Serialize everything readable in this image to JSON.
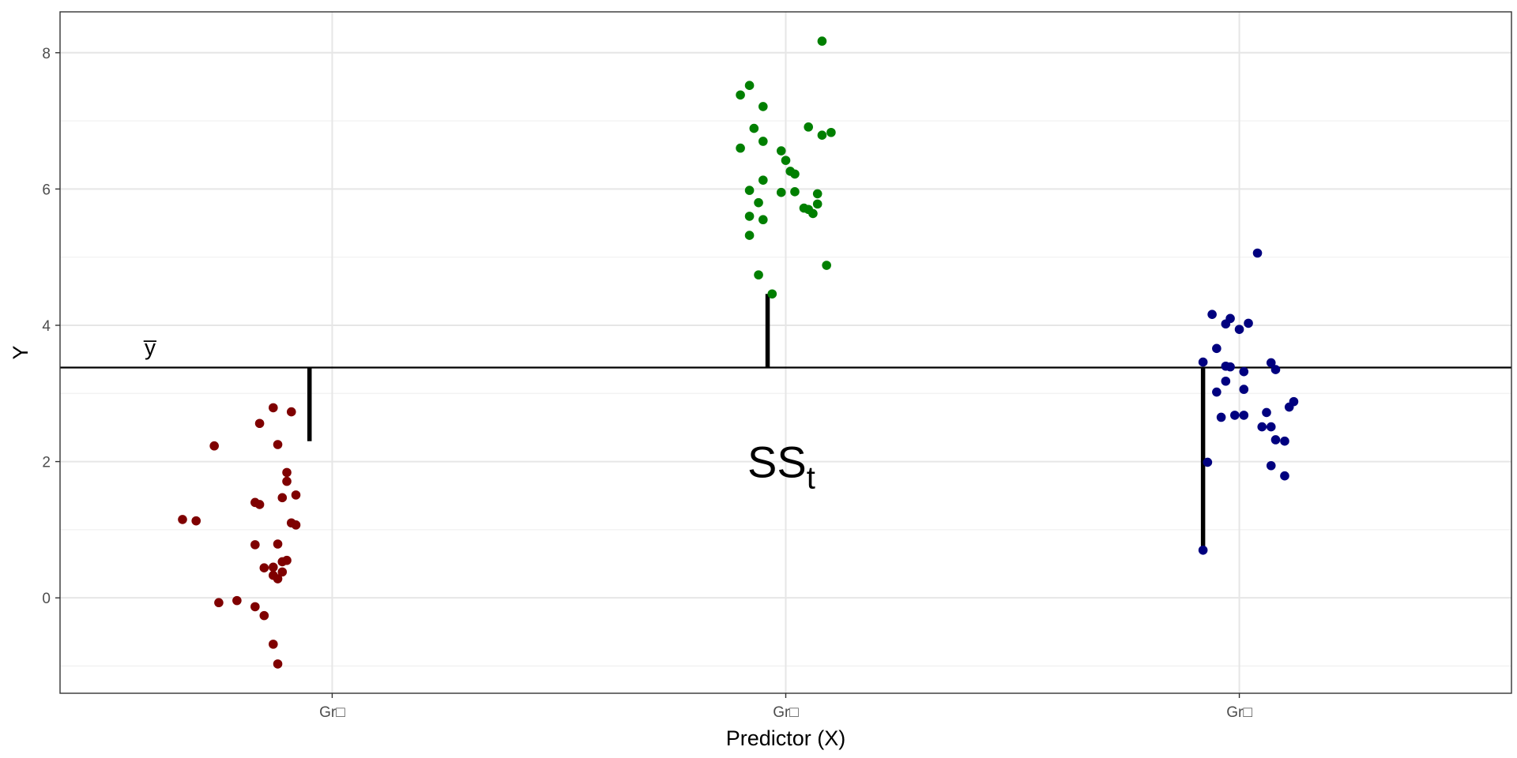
{
  "chart_data": {
    "type": "scatter",
    "title": "",
    "xlabel": "Predictor (X)",
    "ylabel": "Y",
    "categories": [
      "Gr□",
      "Gr□",
      "Gr□"
    ],
    "ylim": [
      -1.4,
      8.6
    ],
    "yticks": [
      0,
      2,
      4,
      6,
      8
    ],
    "grid": true,
    "legend": "none",
    "grand_mean": 3.38,
    "annotations": {
      "mean_label": "y̅",
      "ss_label": "SS",
      "ss_subscript": "t"
    },
    "series": [
      {
        "color": "#7f0000",
        "points": [
          [
            -0.16,
            2.56
          ],
          [
            -0.13,
            2.79
          ],
          [
            -0.09,
            2.73
          ],
          [
            -0.26,
            2.23
          ],
          [
            -0.12,
            2.25
          ],
          [
            -0.1,
            1.84
          ],
          [
            -0.1,
            1.71
          ],
          [
            -0.11,
            1.47
          ],
          [
            -0.08,
            1.51
          ],
          [
            -0.17,
            1.4
          ],
          [
            -0.16,
            1.37
          ],
          [
            -0.33,
            1.15
          ],
          [
            -0.3,
            1.13
          ],
          [
            -0.09,
            1.1
          ],
          [
            -0.08,
            1.07
          ],
          [
            -0.17,
            0.78
          ],
          [
            -0.12,
            0.79
          ],
          [
            -0.1,
            0.55
          ],
          [
            -0.11,
            0.53
          ],
          [
            -0.15,
            0.44
          ],
          [
            -0.13,
            0.45
          ],
          [
            -0.11,
            0.38
          ],
          [
            -0.13,
            0.33
          ],
          [
            -0.12,
            0.28
          ],
          [
            -0.21,
            -0.04
          ],
          [
            -0.25,
            -0.07
          ],
          [
            -0.17,
            -0.13
          ],
          [
            -0.15,
            -0.26
          ],
          [
            -0.13,
            -0.68
          ],
          [
            -0.12,
            -0.97
          ]
        ]
      },
      {
        "color": "#007f00",
        "points": [
          [
            0.08,
            8.17
          ],
          [
            -0.08,
            7.52
          ],
          [
            -0.1,
            7.38
          ],
          [
            -0.05,
            7.21
          ],
          [
            -0.07,
            6.89
          ],
          [
            0.05,
            6.91
          ],
          [
            0.1,
            6.83
          ],
          [
            0.08,
            6.79
          ],
          [
            -0.05,
            6.7
          ],
          [
            -0.1,
            6.6
          ],
          [
            -0.01,
            6.56
          ],
          [
            0.0,
            6.42
          ],
          [
            0.01,
            6.26
          ],
          [
            0.02,
            6.22
          ],
          [
            -0.05,
            6.13
          ],
          [
            -0.08,
            5.98
          ],
          [
            -0.01,
            5.95
          ],
          [
            0.02,
            5.96
          ],
          [
            0.07,
            5.93
          ],
          [
            0.07,
            5.78
          ],
          [
            -0.06,
            5.8
          ],
          [
            0.04,
            5.72
          ],
          [
            0.05,
            5.7
          ],
          [
            0.06,
            5.64
          ],
          [
            -0.08,
            5.6
          ],
          [
            -0.05,
            5.55
          ],
          [
            -0.08,
            5.32
          ],
          [
            0.09,
            4.88
          ],
          [
            -0.06,
            4.74
          ],
          [
            -0.03,
            4.46
          ]
        ]
      },
      {
        "color": "#00007f",
        "points": [
          [
            0.04,
            5.06
          ],
          [
            -0.06,
            4.16
          ],
          [
            -0.02,
            4.1
          ],
          [
            -0.03,
            4.02
          ],
          [
            0.02,
            4.03
          ],
          [
            0.0,
            3.94
          ],
          [
            -0.05,
            3.66
          ],
          [
            -0.08,
            3.46
          ],
          [
            0.07,
            3.45
          ],
          [
            -0.03,
            3.4
          ],
          [
            -0.02,
            3.39
          ],
          [
            0.01,
            3.32
          ],
          [
            0.08,
            3.35
          ],
          [
            -0.03,
            3.18
          ],
          [
            -0.05,
            3.02
          ],
          [
            0.01,
            3.06
          ],
          [
            0.12,
            2.88
          ],
          [
            0.11,
            2.8
          ],
          [
            -0.04,
            2.65
          ],
          [
            -0.01,
            2.68
          ],
          [
            0.01,
            2.68
          ],
          [
            0.06,
            2.72
          ],
          [
            0.05,
            2.51
          ],
          [
            0.07,
            2.51
          ],
          [
            0.08,
            2.32
          ],
          [
            0.1,
            2.3
          ],
          [
            -0.07,
            1.99
          ],
          [
            0.07,
            1.94
          ],
          [
            0.1,
            1.79
          ],
          [
            -0.08,
            0.7
          ]
        ]
      }
    ],
    "deviation_segments": [
      {
        "group": 0,
        "dx": -0.05,
        "from": 3.38,
        "to": 2.3
      },
      {
        "group": 1,
        "dx": -0.04,
        "from": 3.38,
        "to": 4.46
      },
      {
        "group": 2,
        "dx": -0.08,
        "from": 3.38,
        "to": 0.7
      }
    ]
  }
}
